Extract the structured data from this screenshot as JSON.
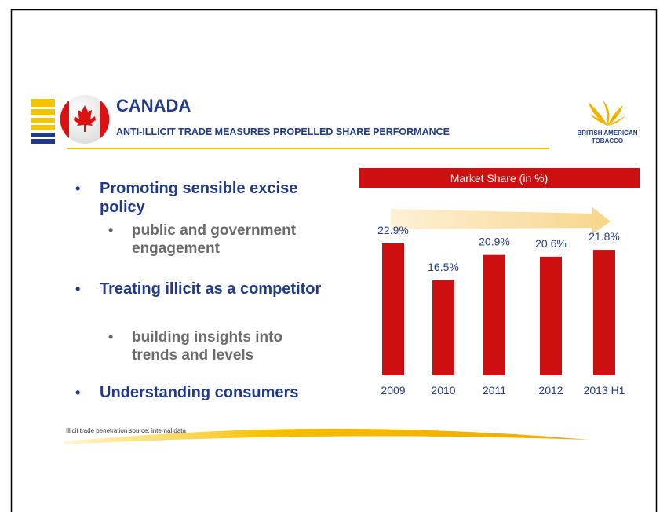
{
  "header": {
    "title": "CANADA",
    "subtitle": "ANTI-ILLICIT TRADE MEASURES PROPELLED SHARE PERFORMANCE"
  },
  "logo": {
    "line1": "British American",
    "line2": "Tobacco"
  },
  "bullets": [
    {
      "text": "Promoting sensible excise policy",
      "sub": [
        "public and government engagement"
      ]
    },
    {
      "text": "Treating illicit as a competitor",
      "sub": [
        "building insights into trends and levels"
      ]
    },
    {
      "text": "Understanding consumers",
      "sub": []
    }
  ],
  "footnote": "Illicit trade penetration source: internal data",
  "chart_data": {
    "type": "bar",
    "title": "Market Share (in %)",
    "categories": [
      "2009",
      "2010",
      "2011",
      "2012",
      "2013 H1"
    ],
    "values": [
      22.9,
      16.5,
      20.9,
      20.6,
      21.8
    ],
    "value_labels": [
      "22.9%",
      "16.5%",
      "20.9%",
      "20.6%",
      "21.8%"
    ],
    "color": "#cc1010"
  }
}
